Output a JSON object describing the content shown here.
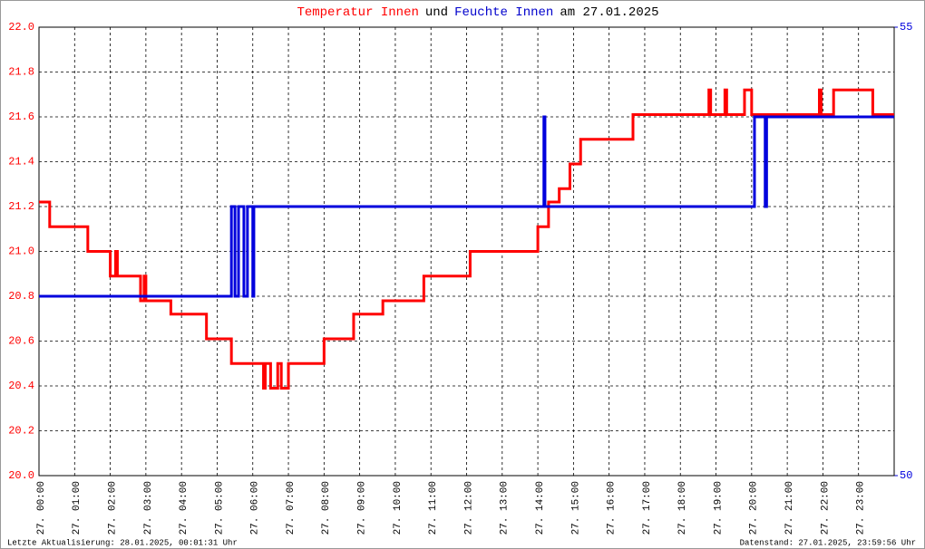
{
  "chart_data": {
    "type": "line",
    "title": [
      "Temperatur Innen",
      "und",
      "Feuchte Innen",
      "am 27.01.2025"
    ],
    "title_colors": [
      "#ff0000",
      "#000000",
      "#0000cc",
      "#000000"
    ],
    "footer_left": "Letzte Aktualisierung: 28.01.2025, 00:01:31 Uhr",
    "footer_right": "Datenstand: 27.01.2025, 23:59:56 Uhr",
    "grid": true,
    "xlim": [
      0,
      24
    ],
    "xticks": [
      {
        "value": 0,
        "label": "27. 00:00"
      },
      {
        "value": 1,
        "label": "27. 01:00"
      },
      {
        "value": 2,
        "label": "27. 02:00"
      },
      {
        "value": 3,
        "label": "27. 03:00"
      },
      {
        "value": 4,
        "label": "27. 04:00"
      },
      {
        "value": 5,
        "label": "27. 05:00"
      },
      {
        "value": 6,
        "label": "27. 06:00"
      },
      {
        "value": 7,
        "label": "27. 07:00"
      },
      {
        "value": 8,
        "label": "27. 08:00"
      },
      {
        "value": 9,
        "label": "27. 09:00"
      },
      {
        "value": 10,
        "label": "27. 10:00"
      },
      {
        "value": 11,
        "label": "27. 11:00"
      },
      {
        "value": 12,
        "label": "27. 12:00"
      },
      {
        "value": 13,
        "label": "27. 13:00"
      },
      {
        "value": 14,
        "label": "27. 14:00"
      },
      {
        "value": 15,
        "label": "27. 15:00"
      },
      {
        "value": 16,
        "label": "27. 16:00"
      },
      {
        "value": 17,
        "label": "27. 17:00"
      },
      {
        "value": 18,
        "label": "27. 18:00"
      },
      {
        "value": 19,
        "label": "27. 19:00"
      },
      {
        "value": 20,
        "label": "27. 20:00"
      },
      {
        "value": 21,
        "label": "27. 21:00"
      },
      {
        "value": 22,
        "label": "27. 22:00"
      },
      {
        "value": 23,
        "label": "27. 23:00"
      }
    ],
    "ylim": [
      20,
      22
    ],
    "yticks": [
      {
        "value": 20,
        "label": "20.0"
      },
      {
        "value": 20.2,
        "label": "20.2"
      },
      {
        "value": 20.4,
        "label": "20.4"
      },
      {
        "value": 20.6,
        "label": "20.6"
      },
      {
        "value": 20.8,
        "label": "20.8"
      },
      {
        "value": 21,
        "label": "21.0"
      },
      {
        "value": 21.2,
        "label": "21.2"
      },
      {
        "value": 21.4,
        "label": "21.4"
      },
      {
        "value": 21.6,
        "label": "21.6"
      },
      {
        "value": 21.8,
        "label": "21.8"
      },
      {
        "value": 22,
        "label": "22.0"
      }
    ],
    "y2lim": [
      50,
      55
    ],
    "y2ticks": [
      50,
      55
    ],
    "series": [
      {
        "name": "Temperatur Innen",
        "color": "#ff0000",
        "x": [
          0,
          0.3,
          0.3,
          1.37,
          1.37,
          2.0,
          2.0,
          2.15,
          2.15,
          2.2,
          2.2,
          2.85,
          2.85,
          2.95,
          2.95,
          3.0,
          3.0,
          3.7,
          3.7,
          4.7,
          4.7,
          5.4,
          5.4,
          6.3,
          6.3,
          6.35,
          6.35,
          6.5,
          6.5,
          6.7,
          6.7,
          6.8,
          6.8,
          7.0,
          7.0,
          8.0,
          8.0,
          8.83,
          8.83,
          9.65,
          9.65,
          10.8,
          10.8,
          12.1,
          12.1,
          14.0,
          14.0,
          14.3,
          14.3,
          14.6,
          14.6,
          14.9,
          14.9,
          15.2,
          15.2,
          16.67,
          16.67,
          18.8,
          18.8,
          18.85,
          18.85,
          19.25,
          19.25,
          19.3,
          19.3,
          19.8,
          19.8,
          20.0,
          20.0,
          21.9,
          21.9,
          21.95,
          21.95,
          22.3,
          22.3,
          23.4,
          23.4,
          24
        ],
        "values": [
          21.22,
          21.22,
          21.11,
          21.11,
          21.0,
          21.0,
          20.89,
          20.89,
          21.0,
          21.0,
          20.89,
          20.89,
          20.78,
          20.78,
          20.89,
          20.89,
          20.78,
          20.78,
          20.72,
          20.72,
          20.61,
          20.61,
          20.5,
          20.5,
          20.39,
          20.39,
          20.5,
          20.5,
          20.39,
          20.39,
          20.5,
          20.5,
          20.39,
          20.39,
          20.5,
          20.5,
          20.61,
          20.61,
          20.72,
          20.72,
          20.78,
          20.78,
          20.89,
          20.89,
          21.0,
          21.0,
          21.11,
          21.11,
          21.22,
          21.22,
          21.28,
          21.28,
          21.39,
          21.39,
          21.5,
          21.5,
          21.61,
          21.61,
          21.72,
          21.72,
          21.61,
          21.61,
          21.72,
          21.72,
          21.61,
          21.61,
          21.72,
          21.72,
          21.61,
          21.61,
          21.72,
          21.72,
          21.61,
          21.61,
          21.72,
          21.72,
          21.61,
          21.61
        ]
      },
      {
        "name": "Feuchte Innen",
        "color": "#0000dd",
        "axis": "y2",
        "x": [
          0,
          5.4,
          5.4,
          5.5,
          5.5,
          5.6,
          5.6,
          5.75,
          5.75,
          5.85,
          5.85,
          6.0,
          6.0,
          6.03,
          6.03,
          14.17,
          14.17,
          14.2,
          14.2,
          20.08,
          20.08,
          20.38,
          20.38,
          20.42,
          20.42,
          24
        ],
        "values": [
          52,
          52,
          53,
          53,
          52,
          52,
          53,
          53,
          52,
          52,
          53,
          53,
          52,
          52,
          53,
          53,
          54,
          54,
          53,
          53,
          54,
          54,
          53,
          53,
          54,
          54
        ]
      }
    ]
  }
}
